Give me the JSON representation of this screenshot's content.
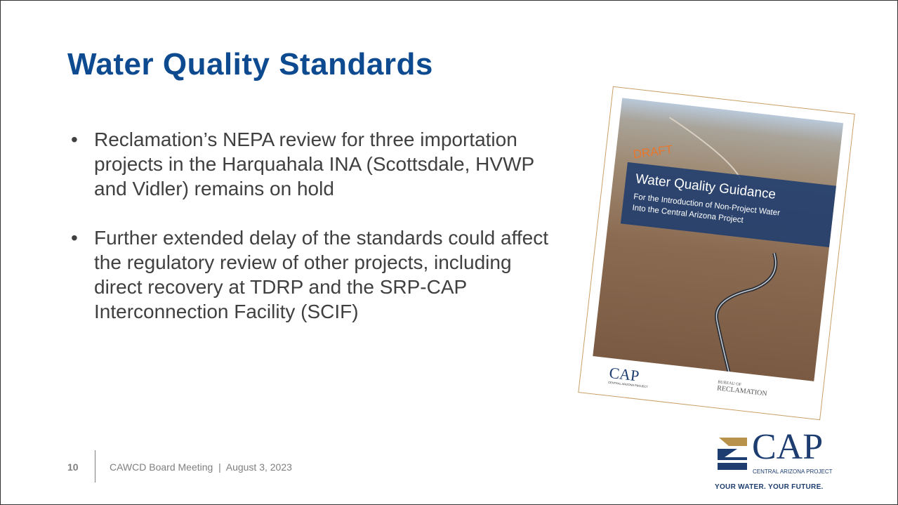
{
  "title": "Water Quality Standards",
  "bullets": [
    "Reclamation’s NEPA review for three importation projects in the Harquahala INA (Scottsdale, HVWP and Vidler) remains on hold",
    "Further extended delay of the standards could affect the regulatory review of other projects, including direct recovery at TDRP and the SRP-CAP Interconnection Facility (SCIF)"
  ],
  "cover": {
    "stamp": "DRAFT",
    "title": "Water Quality Guidance",
    "subtitle_lines": [
      "For the Introduction of Non-Project Water",
      "Into the Central Arizona Project"
    ],
    "logos": {
      "cap": "CAP",
      "cap_sub": "CENTRAL ARIZONA PROJECT",
      "bor_top": "BUREAU OF",
      "bor": "RECLAMATION"
    }
  },
  "footer": {
    "page": "10",
    "text": "CAWCD Board Meeting  |  August 3, 2023"
  },
  "logo": {
    "name": "CAP",
    "subtitle": "CENTRAL ARIZONA PROJECT",
    "tagline": "YOUR WATER. YOUR FUTURE."
  }
}
